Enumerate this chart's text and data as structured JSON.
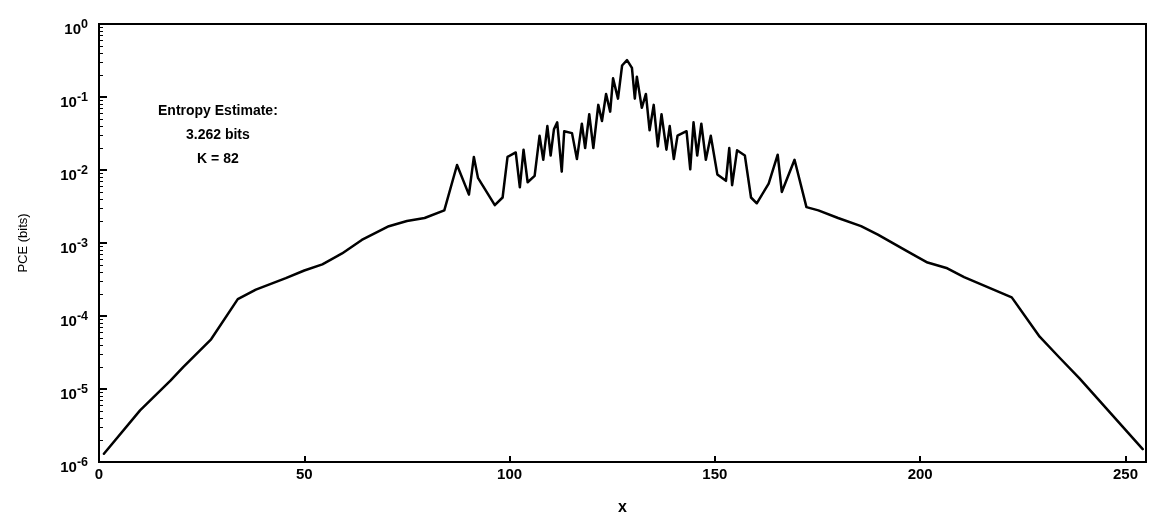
{
  "chart_data": {
    "type": "line",
    "xlabel": "x",
    "ylabel": "PCE (bits)",
    "annotations": [
      "Entropy Estimate:\n3.262 bits\nK = 82"
    ],
    "log": "y",
    "grid": false,
    "marker": "none",
    "line_style": "solid",
    "xlim": [
      0,
      255
    ],
    "xticks": [
      0,
      50,
      100,
      150,
      200,
      250
    ],
    "ylim": [
      1e-06,
      1
    ],
    "yticks": [
      {
        "value": 1e-06,
        "label": "10$^{-6}$"
      },
      {
        "value": 1e-05,
        "label": "10$^{-5}$"
      },
      {
        "value": 0.0001,
        "label": "10$^{-4}$"
      },
      {
        "value": 0.001,
        "label": "10$^{-3}$"
      },
      {
        "value": 0.01,
        "label": "10$^{-2}$"
      },
      {
        "value": 0.1,
        "label": "10$^{-1}$"
      },
      {
        "value": 1,
        "label": "10$^{0}$"
      }
    ],
    "series": [
      {
        "color": "#000000",
        "x": [
          1.2,
          10,
          17.4,
          20.5,
          27.3,
          33.8,
          38.2,
          45.5,
          50,
          54.4,
          59.2,
          64,
          70.6,
          75,
          79.3,
          84.1,
          87.2,
          90.1,
          91.3,
          92.3,
          96.4,
          98.3,
          99.5,
          101.5,
          102.5,
          103.4,
          104.4,
          106.1,
          107.3,
          108.2,
          109.2,
          110,
          110.8,
          111.6,
          112.7,
          113.3,
          115.2,
          116.4,
          117.6,
          118.4,
          119.4,
          120.4,
          121.6,
          122.5,
          123.5,
          124.5,
          125.2,
          126.4,
          127.4,
          128.6,
          129.8,
          130.5,
          131,
          132.2,
          133.2,
          134.1,
          135.1,
          136.1,
          137,
          138.2,
          139,
          140,
          140.9,
          143.1,
          144,
          144.8,
          145.7,
          146.7,
          147.8,
          149,
          150.6,
          152.7,
          153.5,
          154.2,
          155.4,
          157.3,
          158.8,
          160.2,
          163.1,
          165.3,
          166.3,
          169.4,
          172.3,
          175.2,
          180,
          185.6,
          189.7,
          197,
          201.8,
          206.6,
          210.7,
          222.3,
          229.1,
          233.9,
          238.8,
          254.2
        ],
        "values": [
          1.3e-06,
          5.1e-06,
          1.3e-05,
          2e-05,
          4.8e-05,
          0.00017,
          0.00023,
          0.00033,
          0.00042,
          0.00051,
          0.00072,
          0.0011,
          0.0017,
          0.002,
          0.0022,
          0.0028,
          0.0117,
          0.0046,
          0.0151,
          0.0078,
          0.0033,
          0.0042,
          0.0151,
          0.0174,
          0.0058,
          0.019,
          0.0068,
          0.0083,
          0.0295,
          0.0138,
          0.04,
          0.0158,
          0.036,
          0.045,
          0.0095,
          0.034,
          0.032,
          0.0141,
          0.043,
          0.02,
          0.058,
          0.02,
          0.078,
          0.047,
          0.11,
          0.063,
          0.18,
          0.095,
          0.27,
          0.32,
          0.25,
          0.095,
          0.19,
          0.071,
          0.11,
          0.035,
          0.078,
          0.021,
          0.058,
          0.019,
          0.04,
          0.0141,
          0.0295,
          0.034,
          0.0102,
          0.045,
          0.0158,
          0.043,
          0.0138,
          0.0295,
          0.0087,
          0.0071,
          0.02,
          0.0062,
          0.0186,
          0.0158,
          0.0042,
          0.0035,
          0.0065,
          0.0162,
          0.005,
          0.0138,
          0.0031,
          0.0028,
          0.0022,
          0.0017,
          0.0013,
          0.00076,
          0.00054,
          0.00045,
          0.00034,
          0.00018,
          5.2e-05,
          2.7e-05,
          1.4e-05,
          1.5e-06
        ]
      }
    ]
  }
}
